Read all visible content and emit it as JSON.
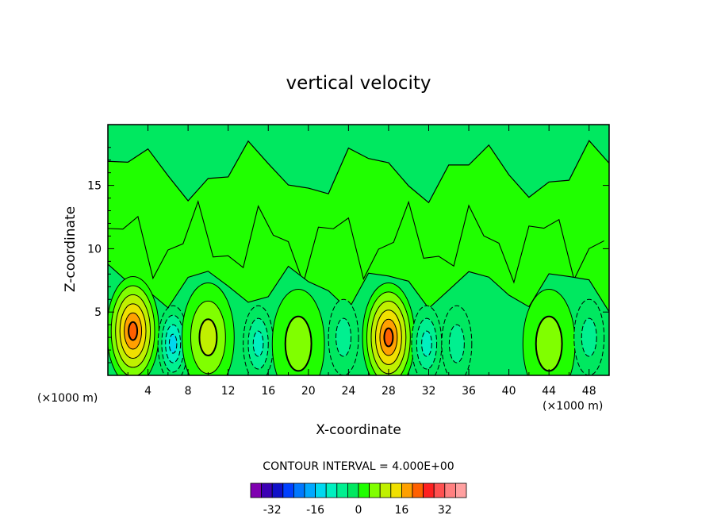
{
  "chart_data": {
    "type": "heatmap",
    "subtype": "filled-contour",
    "title": "vertical velocity",
    "xlabel": "X-coordinate",
    "ylabel": "Z-coordinate",
    "x_unit_left": "(×1000 m)",
    "x_unit_right": "(×1000 m)",
    "xlim": [
      0,
      50
    ],
    "ylim": [
      0,
      19.8
    ],
    "x_ticks": [
      4,
      8,
      12,
      16,
      20,
      24,
      28,
      32,
      36,
      40,
      44,
      48
    ],
    "y_ticks": [
      5,
      10,
      15
    ],
    "contour_interval_label": "CONTOUR INTERVAL = 4.000E+00",
    "contour_interval": 4,
    "colorbar": {
      "levels": [
        -36,
        -32,
        -28,
        -24,
        -20,
        -16,
        -12,
        -8,
        -4,
        0,
        4,
        8,
        12,
        16,
        20,
        24,
        28,
        32,
        36
      ],
      "colors": [
        "#7f00b0",
        "#3c00b4",
        "#1010c8",
        "#0040ff",
        "#0078ff",
        "#00a8ff",
        "#00d8f0",
        "#00f0c0",
        "#00f090",
        "#00e860",
        "#20ff00",
        "#80ff00",
        "#c0f000",
        "#f0e000",
        "#ffa000",
        "#ff6000",
        "#ff2020",
        "#ff5050",
        "#ff8080",
        "#ffa0a0"
      ],
      "tick_labels": [
        "-32",
        "-16",
        "0",
        "16",
        "32"
      ],
      "tick_values": [
        -32,
        -16,
        0,
        16,
        32
      ]
    },
    "field_features": [
      {
        "x": 2.5,
        "z": 3.5,
        "value": 22,
        "sign": "updraft"
      },
      {
        "x": 6.5,
        "z": 2.5,
        "value": -12,
        "sign": "downdraft"
      },
      {
        "x": 10,
        "z": 3,
        "value": 9,
        "sign": "updraft"
      },
      {
        "x": 15,
        "z": 2.5,
        "value": -9,
        "sign": "downdraft"
      },
      {
        "x": 19,
        "z": 2.5,
        "value": 6,
        "sign": "updraft"
      },
      {
        "x": 23.5,
        "z": 3,
        "value": -6,
        "sign": "downdraft"
      },
      {
        "x": 28,
        "z": 3,
        "value": 22,
        "sign": "updraft"
      },
      {
        "x": 31.8,
        "z": 2.5,
        "value": -10,
        "sign": "downdraft"
      },
      {
        "x": 34.8,
        "z": 2.5,
        "value": -7,
        "sign": "downdraft"
      },
      {
        "x": 44,
        "z": 2.5,
        "value": 6,
        "sign": "updraft"
      },
      {
        "x": 48,
        "z": 3,
        "value": -7,
        "sign": "downdraft"
      }
    ]
  }
}
